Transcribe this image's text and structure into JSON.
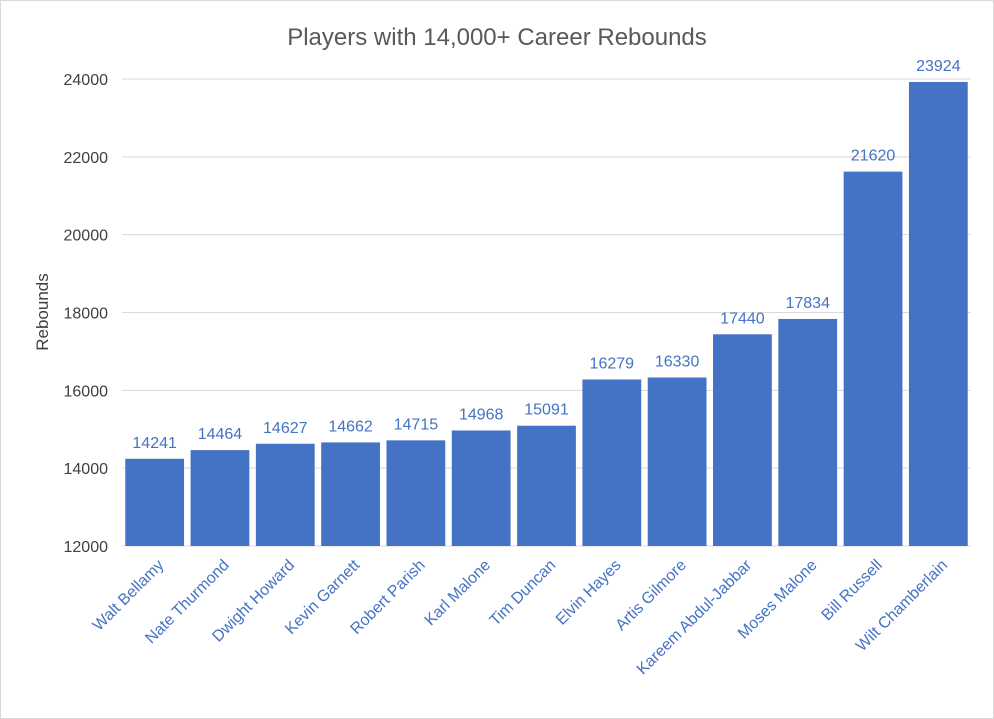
{
  "chart_data": {
    "type": "bar",
    "title": "Players with 14,000+ Career Rebounds",
    "xlabel": "",
    "ylabel": "Rebounds",
    "ylim": [
      12000,
      24000
    ],
    "yticks": [
      12000,
      14000,
      16000,
      18000,
      20000,
      22000,
      24000
    ],
    "grid": true,
    "legend": "none",
    "categories": [
      "Walt Bellamy",
      "Nate Thurmond",
      "Dwight Howard",
      "Kevin Garnett",
      "Robert Parish",
      "Karl Malone",
      "Tim Duncan",
      "Elvin Hayes",
      "Artis Gilmore",
      "Kareem Abdul-Jabbar",
      "Moses Malone",
      "Bill Russell",
      "Wilt Chamberlain"
    ],
    "values": [
      14241,
      14464,
      14627,
      14662,
      14715,
      14968,
      15091,
      16279,
      16330,
      17440,
      17834,
      21620,
      23924
    ],
    "data_labels": [
      "14241",
      "14464",
      "14627",
      "14662",
      "14715",
      "14968",
      "15091",
      "16279",
      "16330",
      "17440",
      "17834",
      "21620",
      "23924"
    ],
    "colors": {
      "bar": "#4472C4",
      "data_label": "#4472C4",
      "category_label": "#4472C4"
    }
  }
}
